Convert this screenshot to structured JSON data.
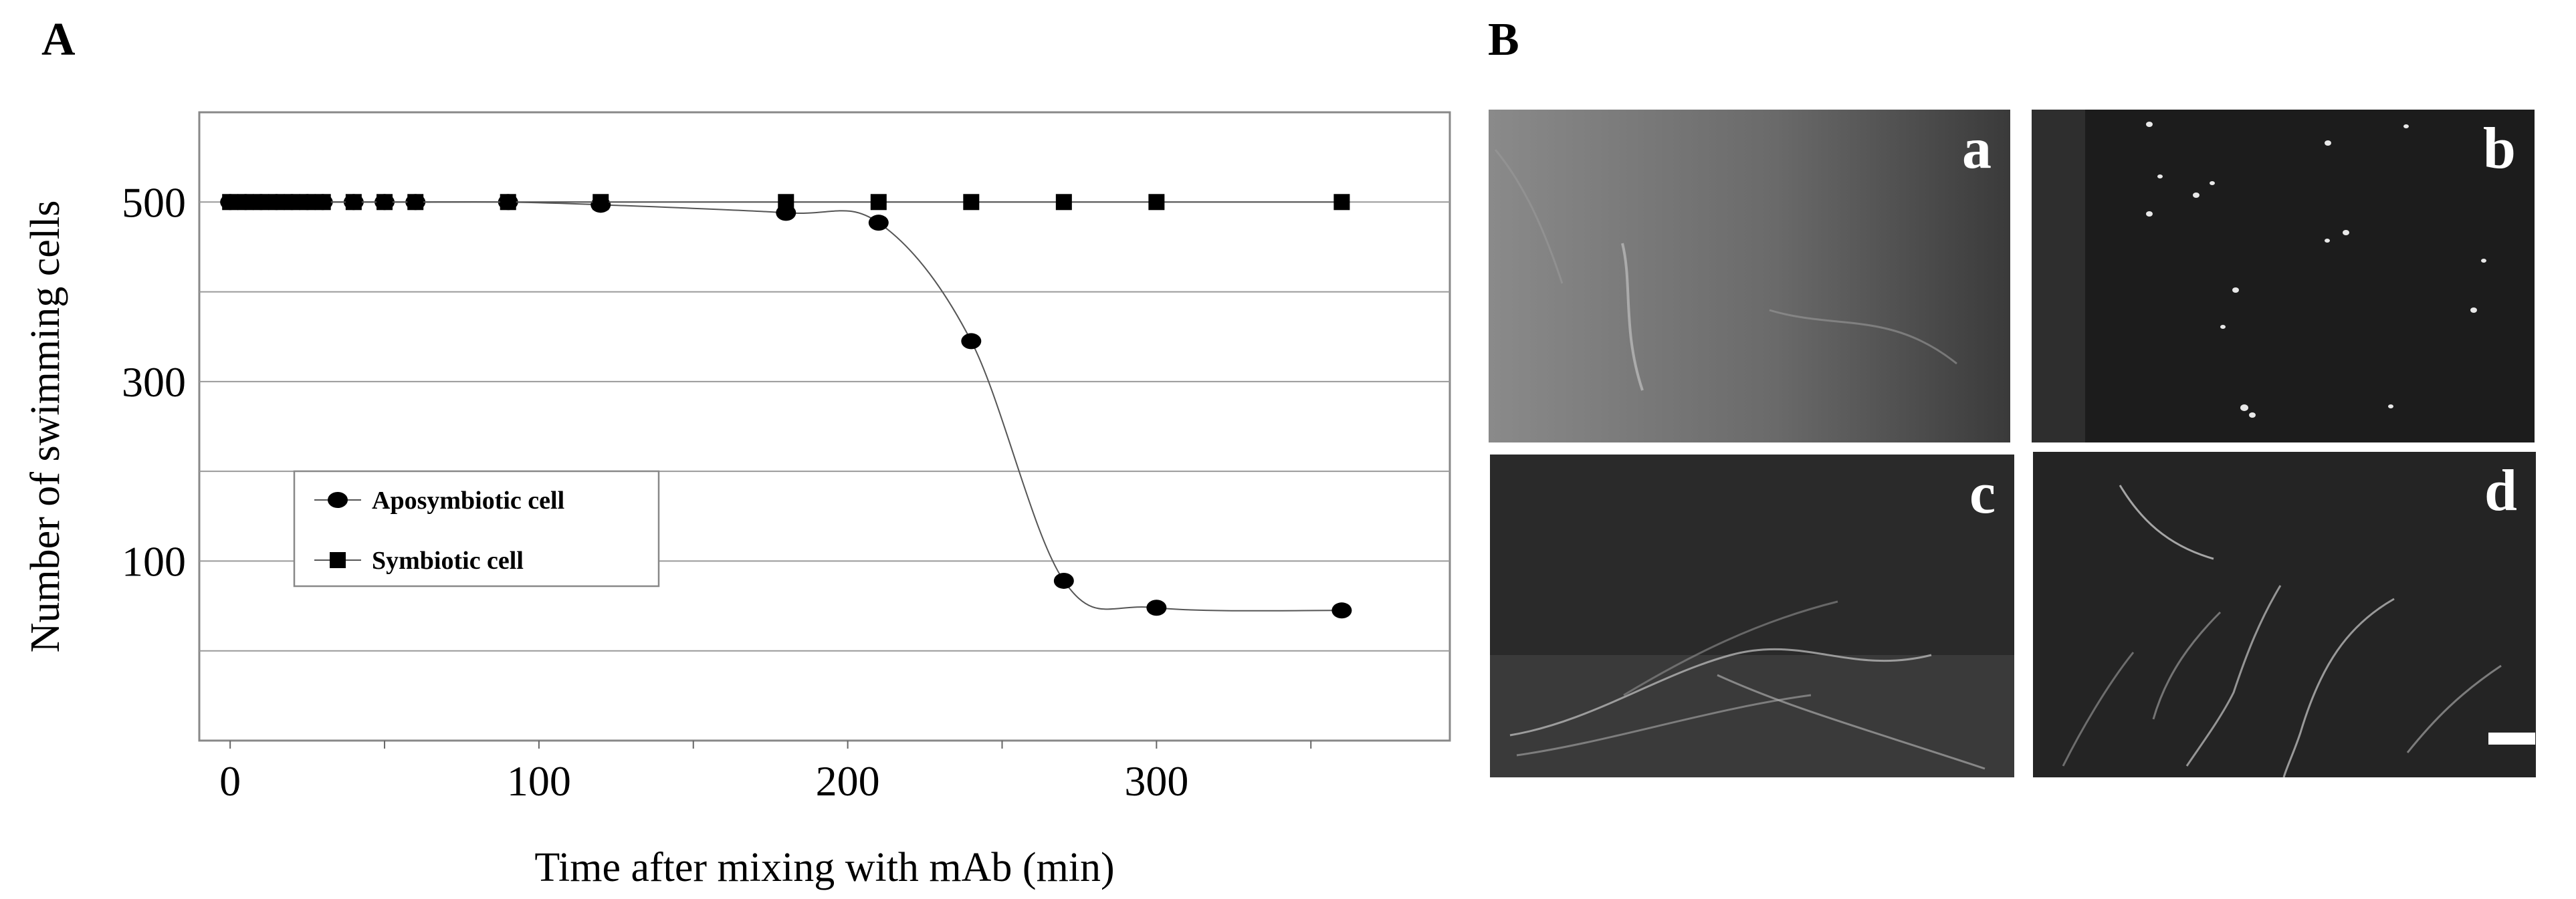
{
  "panels": {
    "left_letter": "A",
    "right_letter": "B"
  },
  "chart_data": {
    "type": "scatter",
    "xlabel": "Time after mixing with mAb (min)",
    "ylabel": "Number of swimming cells",
    "xlim": [
      -10,
      395
    ],
    "ylim": [
      -100,
      600
    ],
    "x_ticks": [
      0,
      100,
      200,
      300
    ],
    "y_tick_labels": [
      100,
      300,
      500
    ],
    "y_gridlines": [
      0,
      100,
      200,
      300,
      400,
      500
    ],
    "grid": true,
    "legend_position": "lower-left",
    "series": [
      {
        "name": "Aposymbiotic cell",
        "marker": "circle",
        "color": "#000000",
        "connected": true,
        "x": [
          0,
          5,
          10,
          15,
          20,
          25,
          30,
          40,
          50,
          60,
          90,
          120,
          180,
          210,
          240,
          270,
          300,
          360
        ],
        "y": [
          500,
          500,
          500,
          500,
          500,
          500,
          500,
          500,
          500,
          500,
          500,
          497,
          488,
          477,
          345,
          78,
          48,
          45
        ]
      },
      {
        "name": "Symbiotic cell",
        "marker": "square",
        "color": "#000000",
        "connected": true,
        "x": [
          0,
          5,
          10,
          15,
          20,
          25,
          30,
          40,
          50,
          60,
          90,
          120,
          180,
          210,
          240,
          270,
          300,
          360
        ],
        "y": [
          500,
          500,
          500,
          500,
          500,
          500,
          500,
          500,
          500,
          500,
          500,
          500,
          500,
          500,
          500,
          500,
          500,
          500
        ]
      }
    ]
  },
  "micrographs": [
    {
      "label": "a",
      "tone": "gray"
    },
    {
      "label": "b",
      "tone": "dark-spotted"
    },
    {
      "label": "c",
      "tone": "dark-fibers"
    },
    {
      "label": "d",
      "tone": "dark-fibers-scale"
    }
  ]
}
